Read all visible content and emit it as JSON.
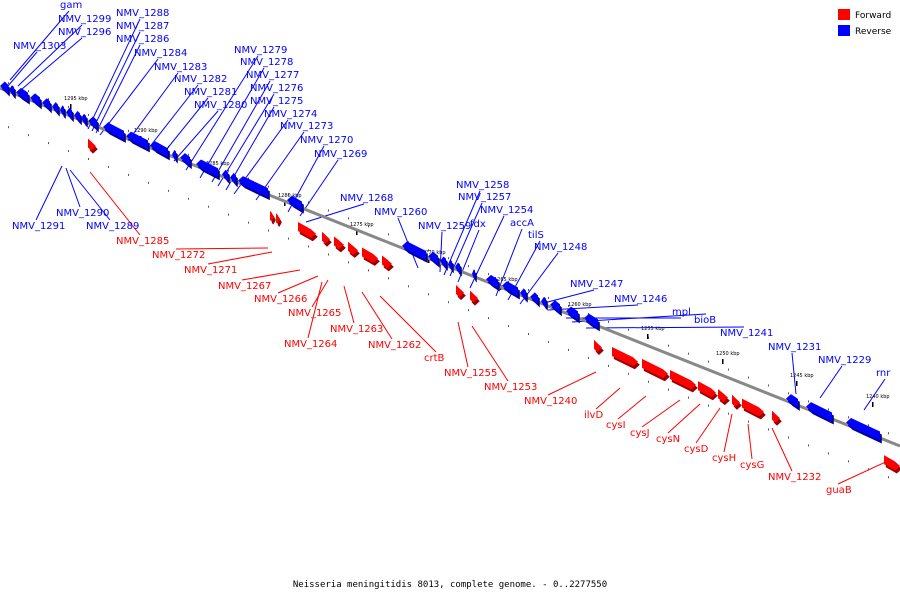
{
  "title": "Neisseria meningitidis 8013, complete genome. - 0..2277550",
  "legend": [
    {
      "label": "Forward",
      "color": "#ff0000"
    },
    {
      "label": "Reverse",
      "color": "#0000ff"
    }
  ],
  "colors": {
    "forward": "#ff0000",
    "reverse": "#0000ff",
    "backbone": "#888888"
  },
  "ticks": [
    "1295 kbp",
    "1290 kbp",
    "1285 kbp",
    "1280 kbp",
    "1275 kbp",
    "1270 kbp",
    "1265 kbp",
    "1260 kbp",
    "1255 kbp",
    "1250 kbp",
    "1245 kbp",
    "1240 kbp"
  ],
  "reverse_labels": [
    "gam",
    "NMV_1299",
    "NMV_1296",
    "NMV_1303",
    "NMV_1288",
    "NMV_1287",
    "NMV_1286",
    "NMV_1284",
    "NMV_1283",
    "NMV_1282",
    "NMV_1281",
    "NMV_1280",
    "NMV_1279",
    "NMV_1278",
    "NMV_1277",
    "NMV_1276",
    "NMV_1275",
    "NMV_1274",
    "NMV_1273",
    "NMV_1270",
    "NMV_1269",
    "NMV_1268",
    "NMV_1260",
    "NMV_1259",
    "NMV_1258",
    "NMV_1257",
    "fdx",
    "NMV_1254",
    "accA",
    "tilS",
    "NMV_1248",
    "NMV_1247",
    "NMV_1246",
    "mpl",
    "bioB",
    "NMV_1241",
    "NMV_1231",
    "NMV_1229",
    "rnr",
    "NMV_1291",
    "NMV_1290",
    "NMV_1289"
  ],
  "forward_labels": [
    "NMV_1285",
    "NMV_1272",
    "NMV_1271",
    "NMV_1267",
    "NMV_1266",
    "NMV_1265",
    "NMV_1263",
    "NMV_1264",
    "NMV_1262",
    "crtB",
    "NMV_1255",
    "NMV_1253",
    "NMV_1240",
    "ilvD",
    "cysI",
    "cysJ",
    "cysN",
    "cysD",
    "cysH",
    "cysG",
    "NMV_1232",
    "guaB"
  ]
}
